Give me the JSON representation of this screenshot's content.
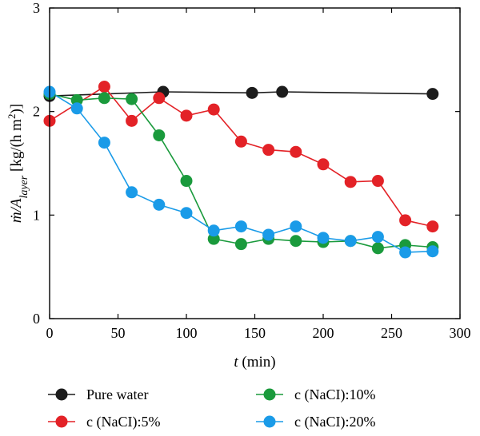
{
  "chart_data": {
    "type": "line",
    "xlabel": {
      "var": "t",
      "unit": " (min)"
    },
    "ylabel": {
      "var": "ṁ/A",
      "sub": "layer",
      "unit_pre": " [kg/(h m",
      "unit_sup": "2",
      "unit_post": ")]"
    },
    "xlim": [
      0,
      300
    ],
    "ylim": [
      0,
      3
    ],
    "xticks": [
      0,
      50,
      100,
      150,
      200,
      250,
      300
    ],
    "yticks": [
      0,
      1,
      2,
      3
    ],
    "grid": false,
    "legend_position": "bottom",
    "series": [
      {
        "name": "Pure water",
        "color": "#1c1c1c",
        "x": [
          0,
          83,
          148,
          170,
          280
        ],
        "y": [
          2.15,
          2.19,
          2.18,
          2.19,
          2.17
        ]
      },
      {
        "name": "c (NaCI):5%",
        "color": "#e32227",
        "x": [
          0,
          40,
          60,
          80,
          100,
          120,
          140,
          160,
          180,
          200,
          220,
          240,
          260,
          280
        ],
        "y": [
          1.91,
          2.24,
          1.91,
          2.13,
          1.96,
          2.02,
          1.71,
          1.63,
          1.61,
          1.49,
          1.32,
          1.33,
          0.95,
          0.89
        ]
      },
      {
        "name": "c (NaCI):10%",
        "color": "#1a9a3c",
        "x": [
          0,
          20,
          40,
          60,
          80,
          100,
          120,
          140,
          160,
          180,
          200,
          220,
          240,
          260,
          280
        ],
        "y": [
          2.17,
          2.11,
          2.13,
          2.12,
          1.77,
          1.33,
          0.77,
          0.72,
          0.77,
          0.75,
          0.74,
          0.75,
          0.68,
          0.71,
          0.69
        ]
      },
      {
        "name": "c (NaCI):20%",
        "color": "#1a9be8",
        "x": [
          0,
          20,
          40,
          60,
          80,
          100,
          120,
          140,
          160,
          180,
          200,
          220,
          240,
          260,
          280
        ],
        "y": [
          2.19,
          2.03,
          1.7,
          1.22,
          1.1,
          1.02,
          0.85,
          0.89,
          0.81,
          0.89,
          0.78,
          0.75,
          0.79,
          0.64,
          0.65
        ]
      }
    ]
  }
}
